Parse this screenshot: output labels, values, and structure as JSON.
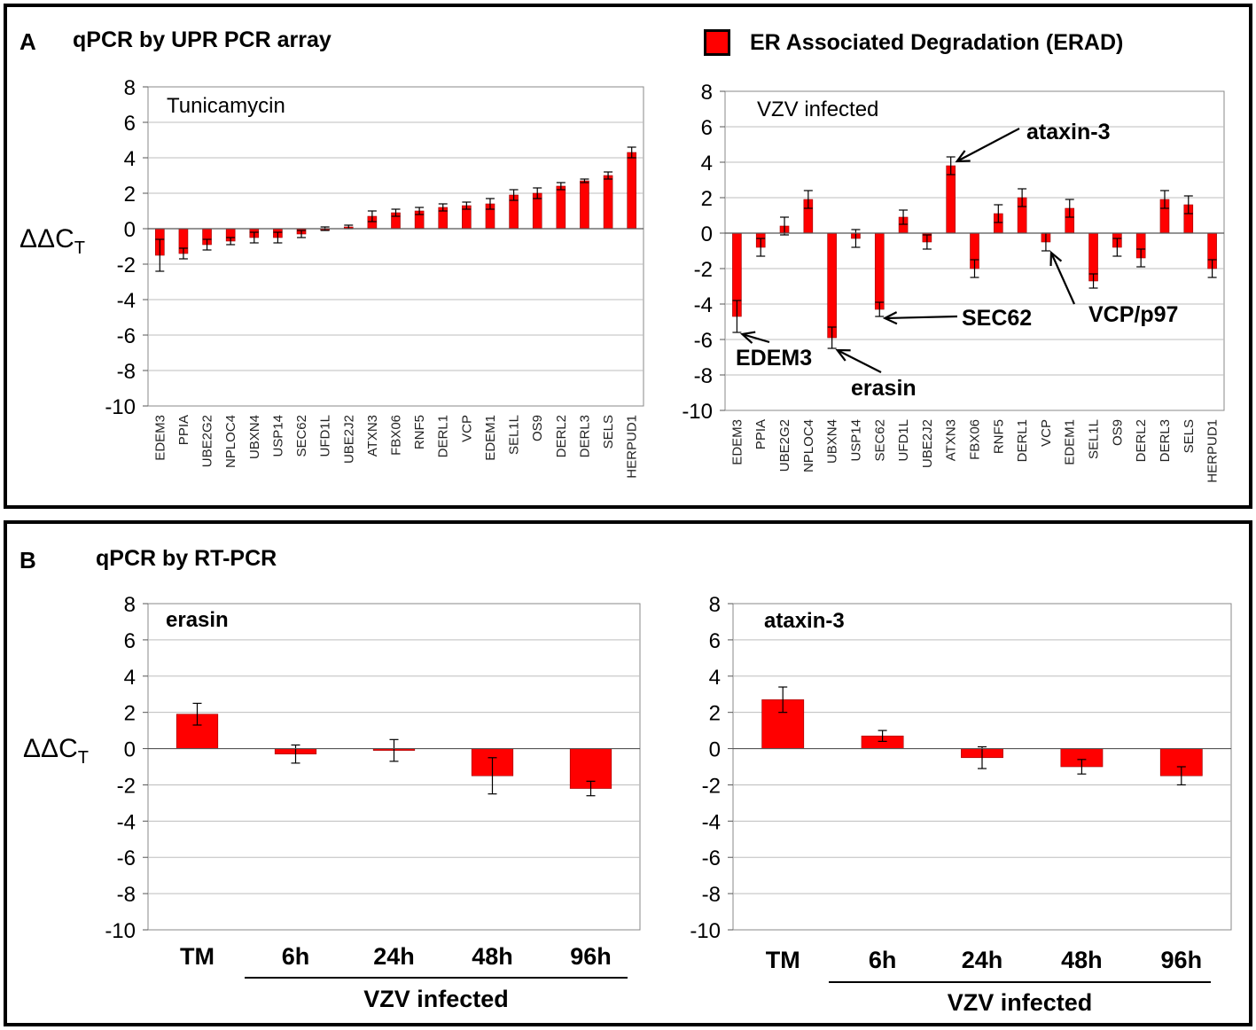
{
  "figure": {
    "panelA": {
      "label": "A",
      "title": "qPCR by UPR PCR array",
      "legend": {
        "text": "ER Associated Degradation (ERAD)",
        "color": "#ff0000"
      },
      "ylabel_main": "ΔΔC",
      "ylabel_sub": "T"
    },
    "panelB": {
      "label": "B",
      "title": "qPCR by RT-PCR",
      "ylabel_main": "ΔΔC",
      "ylabel_sub": "T",
      "group_label": "VZV infected"
    }
  },
  "chart_data": [
    {
      "id": "tunicamycin",
      "type": "bar",
      "title": "Tunicamycin",
      "ylabel": "ΔΔCT",
      "ylim": [
        -10,
        8
      ],
      "yticks": [
        8,
        6,
        4,
        2,
        0,
        -2,
        -4,
        -6,
        -8,
        -10
      ],
      "grid": true,
      "bar_color": "#ff0000",
      "categories": [
        "EDEM3",
        "PPIA",
        "UBE2G2",
        "NPLOC4",
        "UBXN4",
        "USP14",
        "SEC62",
        "UFD1L",
        "UBE2J2",
        "ATXN3",
        "FBX06",
        "RNF5",
        "DERL1",
        "VCP",
        "EDEM1",
        "SEL1L",
        "OS9",
        "DERL2",
        "DERL3",
        "SELS",
        "HERPUD1"
      ],
      "values": [
        -1.5,
        -1.4,
        -0.9,
        -0.7,
        -0.5,
        -0.5,
        -0.3,
        0.0,
        0.1,
        0.7,
        0.9,
        1.0,
        1.2,
        1.3,
        1.4,
        1.9,
        2.0,
        2.4,
        2.7,
        3.0,
        4.3
      ],
      "errors": [
        0.9,
        0.3,
        0.3,
        0.2,
        0.3,
        0.3,
        0.2,
        0.1,
        0.1,
        0.3,
        0.2,
        0.2,
        0.2,
        0.2,
        0.3,
        0.3,
        0.3,
        0.2,
        0.1,
        0.2,
        0.3
      ]
    },
    {
      "id": "vzv",
      "type": "bar",
      "title": "VZV infected",
      "ylabel": "ΔΔCT",
      "ylim": [
        -10,
        8
      ],
      "yticks": [
        8,
        6,
        4,
        2,
        0,
        -2,
        -4,
        -6,
        -8,
        -10
      ],
      "grid": true,
      "bar_color": "#ff0000",
      "categories": [
        "EDEM3",
        "PPIA",
        "UBE2G2",
        "NPLOC4",
        "UBXN4",
        "USP14",
        "SEC62",
        "UFD1L",
        "UBE2J2",
        "ATXN3",
        "FBX06",
        "RNF5",
        "DERL1",
        "VCP",
        "EDEM1",
        "SEL1L",
        "OS9",
        "DERL2",
        "DERL3",
        "SELS",
        "HERPUD1"
      ],
      "values": [
        -4.7,
        -0.8,
        0.4,
        1.9,
        -5.9,
        -0.3,
        -4.3,
        0.9,
        -0.5,
        3.8,
        -2.0,
        1.1,
        2.0,
        -0.5,
        1.4,
        -2.7,
        -0.8,
        -1.4,
        1.9,
        1.6,
        -2.0
      ],
      "errors": [
        0.9,
        0.5,
        0.5,
        0.5,
        0.6,
        0.5,
        0.4,
        0.4,
        0.4,
        0.5,
        0.5,
        0.5,
        0.5,
        0.5,
        0.5,
        0.4,
        0.5,
        0.5,
        0.5,
        0.5,
        0.5
      ],
      "annotations": [
        {
          "text": "ataxin-3",
          "category": "ATXN3"
        },
        {
          "text": "EDEM3",
          "category": "EDEM3"
        },
        {
          "text": "erasin",
          "category": "UBXN4"
        },
        {
          "text": "SEC62",
          "category": "SEC62"
        },
        {
          "text": "VCP/p97",
          "category": "VCP"
        }
      ]
    },
    {
      "id": "erasin",
      "type": "bar",
      "title": "erasin",
      "ylabel": "ΔΔCT",
      "ylim": [
        -10,
        8
      ],
      "yticks": [
        8,
        6,
        4,
        2,
        0,
        -2,
        -4,
        -6,
        -8,
        -10
      ],
      "grid": true,
      "bar_color": "#ff0000",
      "categories": [
        "TM",
        "6h",
        "24h",
        "48h",
        "96h"
      ],
      "values": [
        1.9,
        -0.3,
        -0.1,
        -1.5,
        -2.2
      ],
      "errors": [
        0.6,
        0.5,
        0.6,
        1.0,
        0.4
      ],
      "group_label": "VZV infected"
    },
    {
      "id": "ataxin3",
      "type": "bar",
      "title": "ataxin-3",
      "ylabel": "ΔΔCT",
      "ylim": [
        -10,
        8
      ],
      "yticks": [
        8,
        6,
        4,
        2,
        0,
        -2,
        -4,
        -6,
        -8,
        -10
      ],
      "grid": true,
      "bar_color": "#ff0000",
      "categories": [
        "TM",
        "6h",
        "24h",
        "48h",
        "96h"
      ],
      "values": [
        2.7,
        0.7,
        -0.5,
        -1.0,
        -1.5
      ],
      "errors": [
        0.7,
        0.3,
        0.6,
        0.4,
        0.5
      ],
      "group_label": "VZV infected"
    }
  ]
}
